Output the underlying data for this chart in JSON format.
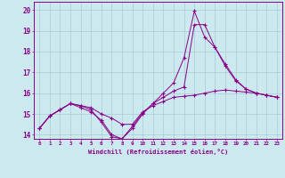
{
  "xlabel": "Windchill (Refroidissement éolien,°C)",
  "background_color": "#cde9f0",
  "grid_color": "#a8ccd8",
  "line_color": "#880088",
  "xlim": [
    -0.5,
    23.5
  ],
  "ylim": [
    13.8,
    20.4
  ],
  "yticks": [
    14,
    15,
    16,
    17,
    18,
    19,
    20
  ],
  "xticks": [
    0,
    1,
    2,
    3,
    4,
    5,
    6,
    7,
    8,
    9,
    10,
    11,
    12,
    13,
    14,
    15,
    16,
    17,
    18,
    19,
    20,
    21,
    22,
    23
  ],
  "line1_x": [
    0,
    1,
    2,
    3,
    4,
    5,
    6,
    7,
    8,
    9,
    10,
    11,
    12,
    13,
    14,
    15,
    16,
    17,
    18,
    19,
    20,
    21,
    22,
    23
  ],
  "line1_y": [
    14.3,
    14.9,
    15.2,
    15.5,
    15.4,
    15.3,
    15.0,
    14.8,
    14.5,
    14.5,
    15.1,
    15.4,
    15.6,
    15.8,
    15.85,
    15.9,
    16.0,
    16.1,
    16.15,
    16.1,
    16.05,
    16.0,
    15.9,
    15.8
  ],
  "line2_x": [
    0,
    1,
    2,
    3,
    4,
    5,
    6,
    7,
    8,
    9,
    10,
    11,
    12,
    13,
    14,
    15,
    16,
    17,
    18,
    19,
    20,
    21,
    22,
    23
  ],
  "line2_y": [
    14.3,
    14.9,
    15.2,
    15.5,
    15.4,
    15.2,
    14.6,
    13.9,
    13.8,
    14.3,
    15.0,
    15.5,
    16.0,
    16.5,
    17.7,
    19.95,
    18.7,
    18.2,
    17.3,
    16.6,
    16.2,
    16.0,
    15.9,
    15.8
  ],
  "line3_x": [
    0,
    1,
    2,
    3,
    4,
    5,
    6,
    7,
    8,
    9,
    10,
    11,
    12,
    13,
    14,
    15,
    16,
    17,
    18,
    19,
    20,
    21,
    22,
    23
  ],
  "line3_y": [
    14.3,
    14.9,
    15.2,
    15.5,
    15.3,
    15.1,
    14.7,
    14.0,
    13.8,
    14.4,
    15.05,
    15.5,
    15.8,
    16.1,
    16.3,
    19.3,
    19.3,
    18.2,
    17.4,
    16.65,
    16.2,
    16.0,
    15.9,
    15.8
  ]
}
